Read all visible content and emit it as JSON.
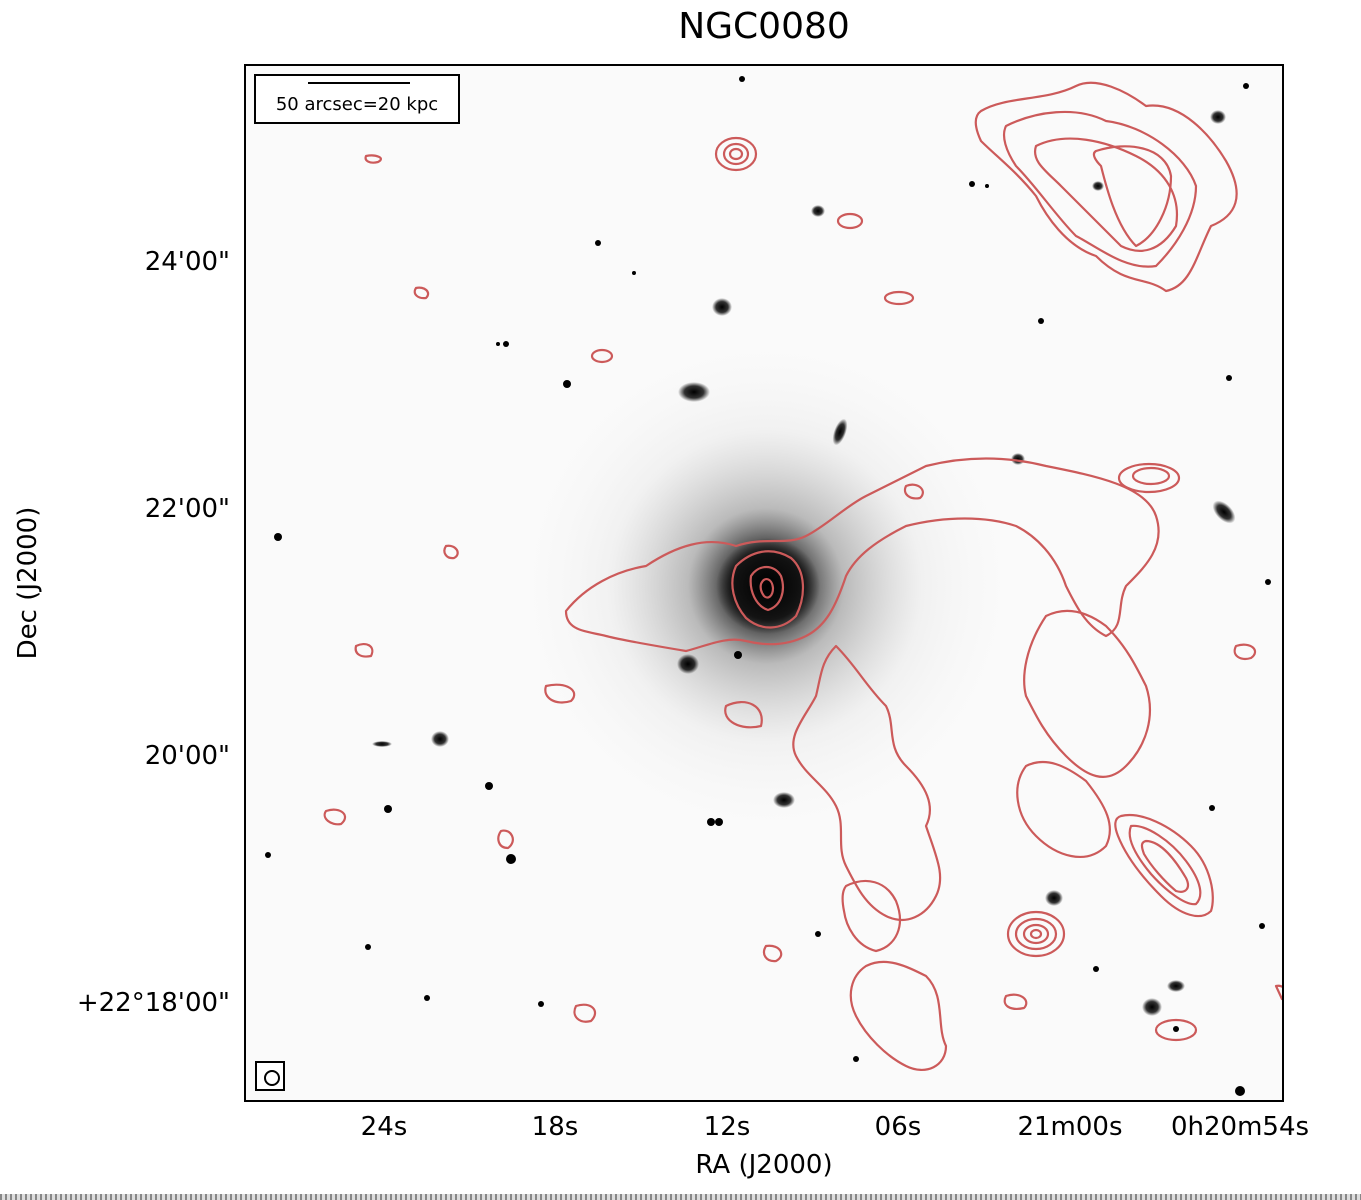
{
  "title": "NGC0080",
  "axes": {
    "xlabel": "RA (J2000)",
    "ylabel": "Dec (J2000)",
    "xticks": [
      "24s",
      "18s",
      "12s",
      "06s",
      "21m00s",
      "0h20m54s"
    ],
    "yticks": [
      "24'00\"",
      "22'00\"",
      "20'00\"",
      "+22°18'00\""
    ]
  },
  "scale_bar": {
    "label": "50 arcsec=20 kpc"
  },
  "colors": {
    "contour": "#cc5a5a",
    "background": "#fafafa",
    "stars": "#000000"
  },
  "icons": {
    "beam": "beam-ellipse-icon"
  }
}
